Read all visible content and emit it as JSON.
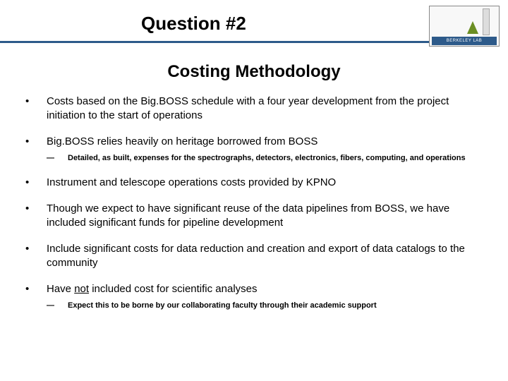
{
  "header": {
    "title": "Question #2",
    "logo_label": "BERKELEY LAB"
  },
  "subtitle": "Costing Methodology",
  "bullets": [
    {
      "text": "Costs based on the Big.BOSS schedule with a four year development from the project initiation to the start of operations",
      "sub": null
    },
    {
      "text": "Big.BOSS relies heavily on heritage borrowed from BOSS",
      "sub": "Detailed, as built, expenses for the spectrographs, detectors, electronics, fibers, computing, and operations"
    },
    {
      "text": "Instrument and telescope operations costs provided by KPNO",
      "sub": null
    },
    {
      "text": "Though we expect to have significant reuse of the data pipelines from BOSS,  we have included significant funds for pipeline development",
      "sub": null
    },
    {
      "text": "Include significant costs for data reduction and creation and export of data catalogs to the community",
      "sub": null
    },
    {
      "text_pre": "Have ",
      "text_underline": "not",
      "text_post": " included cost for scientific analyses",
      "sub": "Expect this to be borne by our collaborating faculty through their academic support"
    }
  ]
}
